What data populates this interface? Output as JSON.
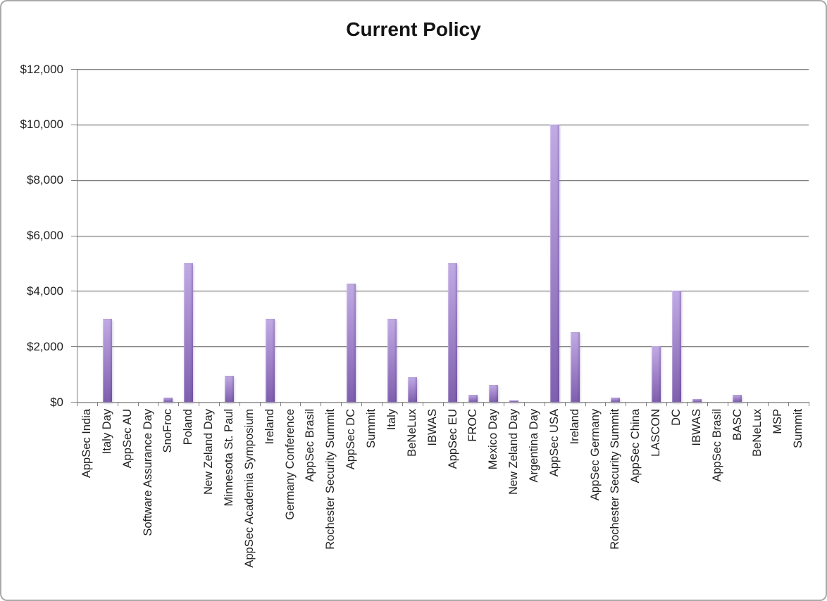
{
  "chart_data": {
    "type": "bar",
    "title": "Current Policy",
    "categories": [
      "AppSec India",
      "Italy Day",
      "AppSec AU",
      "Software Assurance Day",
      "SnoFroc",
      "Poland",
      "New Zeland Day",
      "Minnesota St. Paul",
      "AppSec Academia Symposium",
      "Ireland",
      "Germany Conference",
      "AppSec Brasil",
      "Rochester Security Summit",
      "AppSec DC",
      "Summit",
      "Italy",
      "BeNeLux",
      "IBWAS",
      "AppSec EU",
      "FROC",
      "Mexico Day",
      "New Zeland Day",
      "Argentina Day",
      "AppSec USA",
      "Ireland",
      "AppSec Germany",
      "Rochester Security Summit",
      "AppSec China",
      "LASCON",
      "DC",
      "IBWAS",
      "AppSec Brasil",
      "BASC",
      "BeNeLux",
      "MSP",
      "Summit"
    ],
    "values": [
      0,
      3000,
      0,
      0,
      150,
      5000,
      0,
      950,
      0,
      3000,
      0,
      0,
      0,
      4250,
      0,
      3000,
      900,
      0,
      5000,
      250,
      600,
      50,
      0,
      10000,
      2500,
      0,
      150,
      0,
      2000,
      4000,
      100,
      0,
      250,
      0,
      0,
      0
    ],
    "ylim": [
      0,
      12000
    ],
    "y_tick_interval": 2000,
    "y_tick_labels_top_down": [
      "$12,000",
      "$10,000",
      "$8,000",
      "$6,000",
      "$4,000",
      "$2,000",
      "$0"
    ],
    "grid": true,
    "legend": false,
    "xlabel": "",
    "ylabel": ""
  },
  "colors": {
    "bar_top": "#c0abe4",
    "bar_bottom": "#7e5fae",
    "gridline": "#7f7f7f",
    "axis": "#7f7f7f",
    "text": "#1f1f1f",
    "border": "#a9a9a9",
    "background": "#ffffff"
  }
}
